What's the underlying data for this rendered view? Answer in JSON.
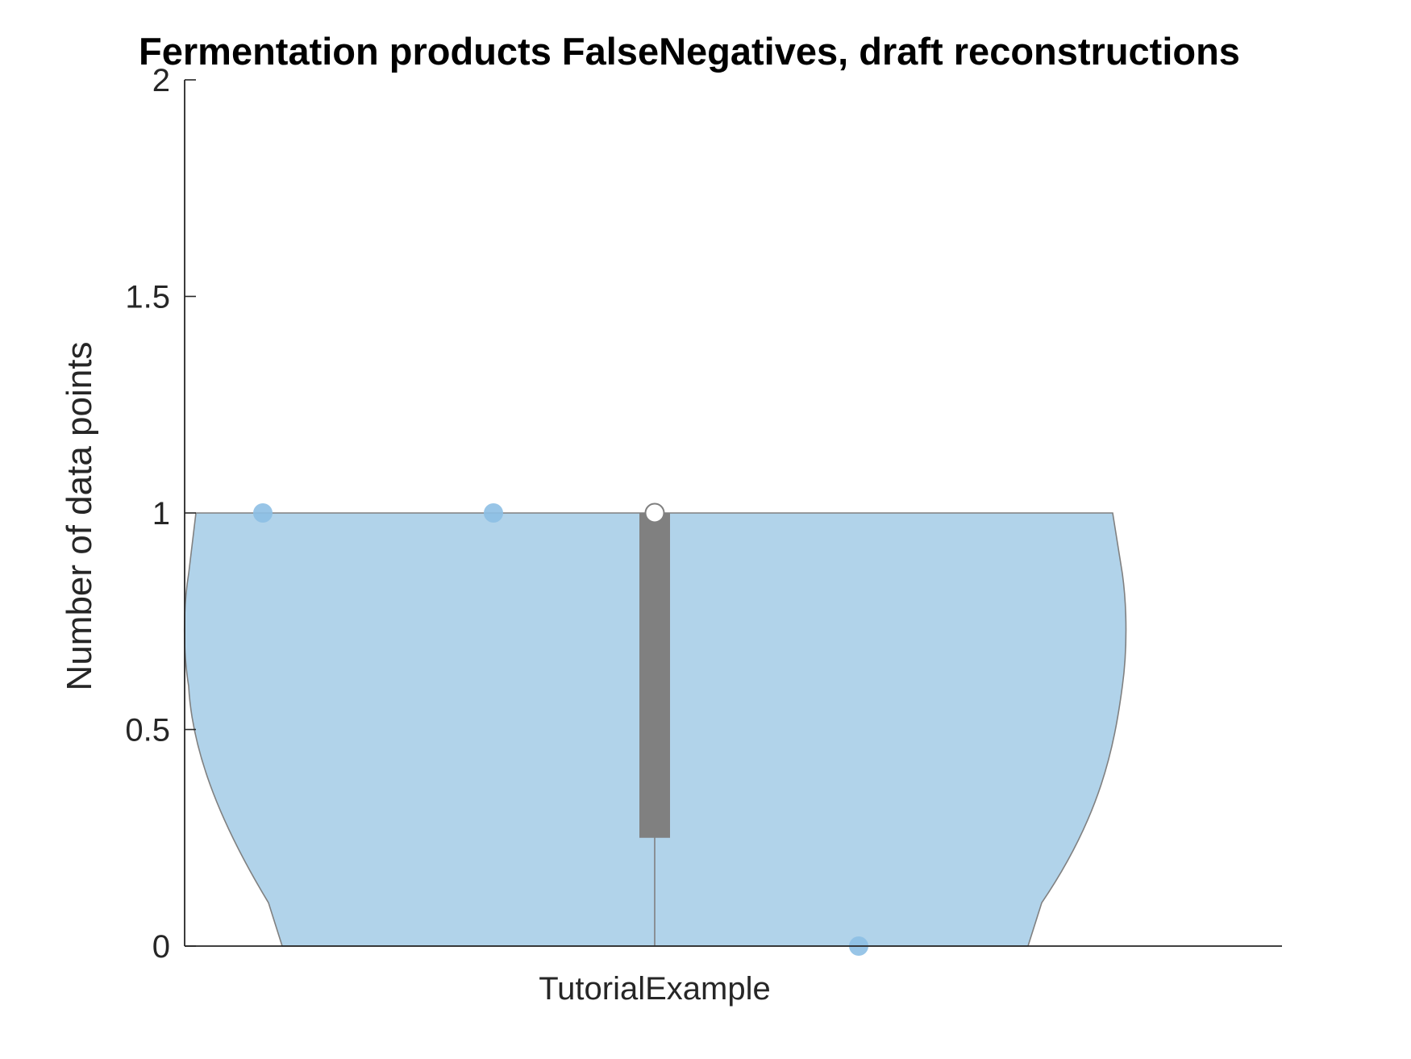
{
  "chart_data": {
    "type": "violin",
    "title": "Fermentation products FalseNegatives, draft reconstructions",
    "xlabel": "",
    "ylabel": "Number of data points",
    "categories": [
      "TutorialExample"
    ],
    "ylim": [
      0,
      2
    ],
    "yticks": [
      0,
      0.5,
      1,
      1.5,
      2
    ],
    "ytick_labels": [
      "0",
      "0.5",
      "1",
      "1.5",
      "2"
    ],
    "series": [
      {
        "category": "TutorialExample",
        "points": [
          1,
          1,
          0
        ],
        "median": 1,
        "q1": 0.25,
        "q3": 1,
        "whisker_low": 0,
        "whisker_high": 1
      }
    ],
    "grid": false,
    "colors": {
      "violin_fill": "#b1d3ea",
      "violin_edge": "#808080",
      "points": "#8dbfe4",
      "box": "#808080",
      "median_marker": "#ffffff",
      "axis": "#262626"
    }
  }
}
